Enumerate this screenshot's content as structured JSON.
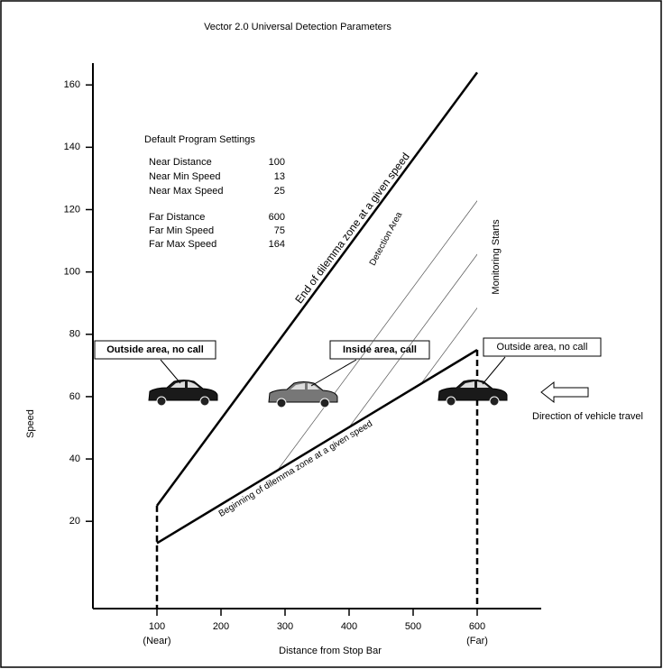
{
  "chart_data": {
    "type": "line",
    "title": "Vector 2.0 Universal Detection Parameters",
    "x_label": "Distance from Stop Bar",
    "y_label": "Speed",
    "xlim": [
      0,
      700
    ],
    "ylim": [
      -8,
      167
    ],
    "xticks": [
      {
        "value": 100,
        "label": "100",
        "note": "(Near)"
      },
      200,
      300,
      400,
      500,
      {
        "value": 600,
        "label": "600",
        "note": "(Far)"
      }
    ],
    "yticks": [
      20,
      40,
      60,
      80,
      100,
      120,
      140,
      160
    ],
    "series": [
      {
        "name": "End of dilemma zone at a given speed",
        "color": "#000000",
        "x": [
          100,
          600
        ],
        "values": [
          25,
          164
        ]
      },
      {
        "name": "Beginning of dilemma zone at a given speed",
        "color": "#000000",
        "x": [
          100,
          600
        ],
        "values": [
          13,
          75
        ]
      }
    ],
    "settings": {
      "title": "Default Program Settings",
      "rows": [
        [
          "Near Distance",
          100
        ],
        [
          "Near Min Speed",
          13
        ],
        [
          "Near Max Speed",
          25
        ],
        [
          "Far Distance",
          600
        ],
        [
          "Far Min Speed",
          75
        ],
        [
          "Far Max Speed",
          164
        ]
      ]
    },
    "annotations": [
      "Outside area, no call",
      "Inside area, call",
      "Outside area, no call",
      "Direction of vehicle travel",
      "Monitoring Starts",
      "Detection Area"
    ]
  }
}
